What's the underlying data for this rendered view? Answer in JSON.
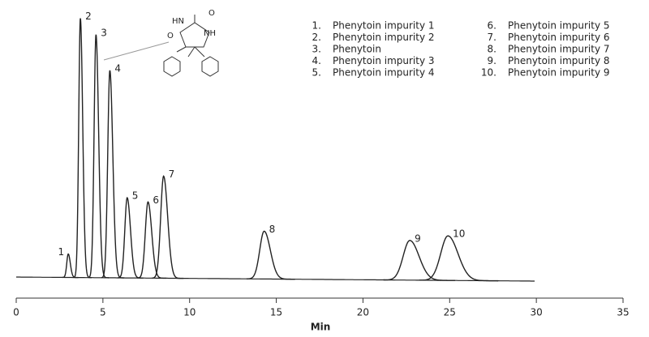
{
  "chart_data": {
    "type": "chromatogram",
    "x_label": "Min",
    "xlim": [
      0,
      35
    ],
    "xticks": [
      0,
      5,
      10,
      15,
      20,
      25,
      30,
      35
    ],
    "structure_labels": [
      "HN",
      "O",
      "NH",
      "O"
    ],
    "peaks": [
      {
        "label": "1",
        "legend_label": "1.",
        "name": "Phenytoin impurity 1",
        "time": 3.0,
        "height": 29
      },
      {
        "label": "2",
        "legend_label": "2.",
        "name": "Phenytoin impurity 2",
        "time": 3.7,
        "height": 320
      },
      {
        "label": "3",
        "legend_label": "3.",
        "name": "Phenytoin",
        "time": 4.6,
        "height": 300
      },
      {
        "label": "4",
        "legend_label": "4.",
        "name": "Phenytoin impurity 3",
        "time": 5.4,
        "height": 256
      },
      {
        "label": "5",
        "legend_label": "5.",
        "name": "Phenytoin impurity 4",
        "time": 6.4,
        "height": 99
      },
      {
        "label": "6",
        "legend_label": "6.",
        "name": "Phenytoin impurity 5",
        "time": 7.6,
        "height": 94
      },
      {
        "label": "7",
        "legend_label": "7.",
        "name": "Phenytoin impurity 6",
        "time": 8.5,
        "height": 126
      },
      {
        "label": "8",
        "legend_label": "8.",
        "name": "Phenytoin impurity 7",
        "time": 14.3,
        "height": 59
      },
      {
        "label": "9",
        "legend_label": "9.",
        "name": "Phenytoin impurity 8",
        "time": 22.7,
        "height": 49
      },
      {
        "label": "10",
        "legend_label": "10.",
        "name": "Phenytoin impurity 9",
        "time": 24.9,
        "height": 55
      }
    ]
  }
}
